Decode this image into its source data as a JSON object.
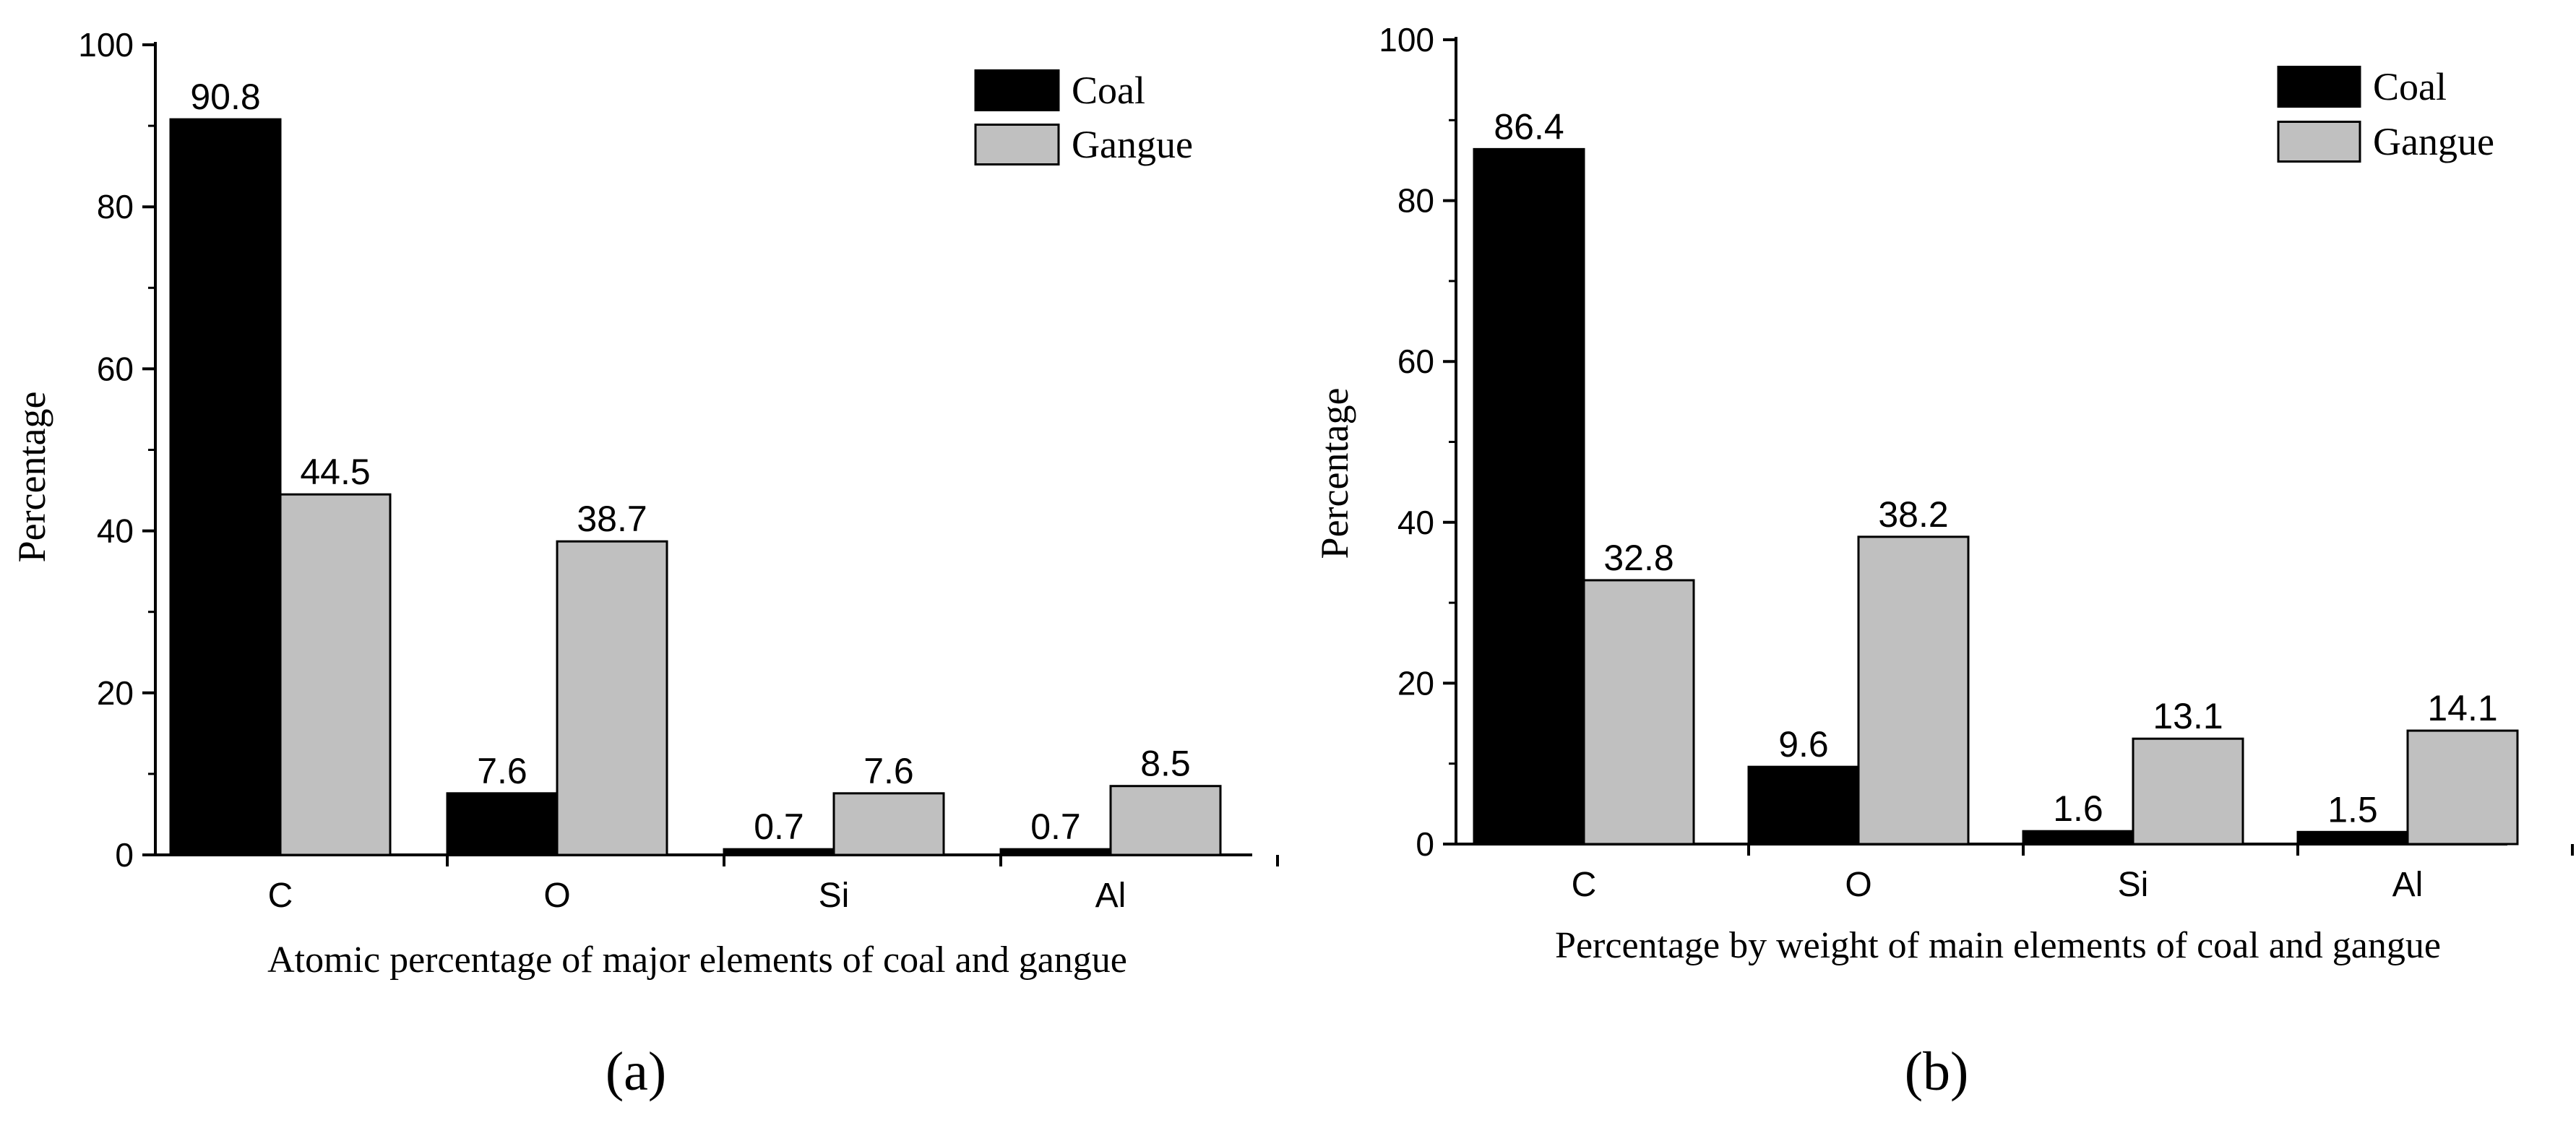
{
  "colors": {
    "coal": "#000000",
    "gangue": "#c0c0c0",
    "axis": "#000000"
  },
  "chart_data": [
    {
      "type": "bar",
      "panel_label": "(a)",
      "title": "",
      "xlabel": "Atomic percentage of major elements of coal and gangue",
      "ylabel": "Percentage",
      "ylim": [
        0,
        100
      ],
      "yticks": [
        0,
        20,
        40,
        60,
        80,
        100
      ],
      "categories": [
        "C",
        "O",
        "Si",
        "Al"
      ],
      "legend_position": "top-right",
      "series": [
        {
          "name": "Coal",
          "color_key": "coal",
          "values": [
            90.8,
            7.6,
            0.7,
            0.7
          ],
          "labels": [
            "90.8",
            "7.6",
            "0.7",
            "0.7"
          ]
        },
        {
          "name": "Gangue",
          "color_key": "gangue",
          "values": [
            44.5,
            38.7,
            7.6,
            8.5
          ],
          "labels": [
            "44.5",
            "38.7",
            "7.6",
            "8.5"
          ]
        }
      ]
    },
    {
      "type": "bar",
      "panel_label": "(b)",
      "title": "",
      "xlabel": "Percentage by weight of main elements of coal and gangue",
      "ylabel": "Percentage",
      "ylim": [
        0,
        100
      ],
      "yticks": [
        0,
        20,
        40,
        60,
        80,
        100
      ],
      "categories": [
        "C",
        "O",
        "Si",
        "Al"
      ],
      "legend_position": "top-right",
      "series": [
        {
          "name": "Coal",
          "color_key": "coal",
          "values": [
            86.4,
            9.6,
            1.6,
            1.5
          ],
          "labels": [
            "86.4",
            "9.6",
            "1.6",
            "1.5"
          ]
        },
        {
          "name": "Gangue",
          "color_key": "gangue",
          "values": [
            32.8,
            38.2,
            13.1,
            14.1
          ],
          "labels": [
            "32.8",
            "38.2",
            "13.1",
            "14.1"
          ]
        }
      ]
    }
  ]
}
